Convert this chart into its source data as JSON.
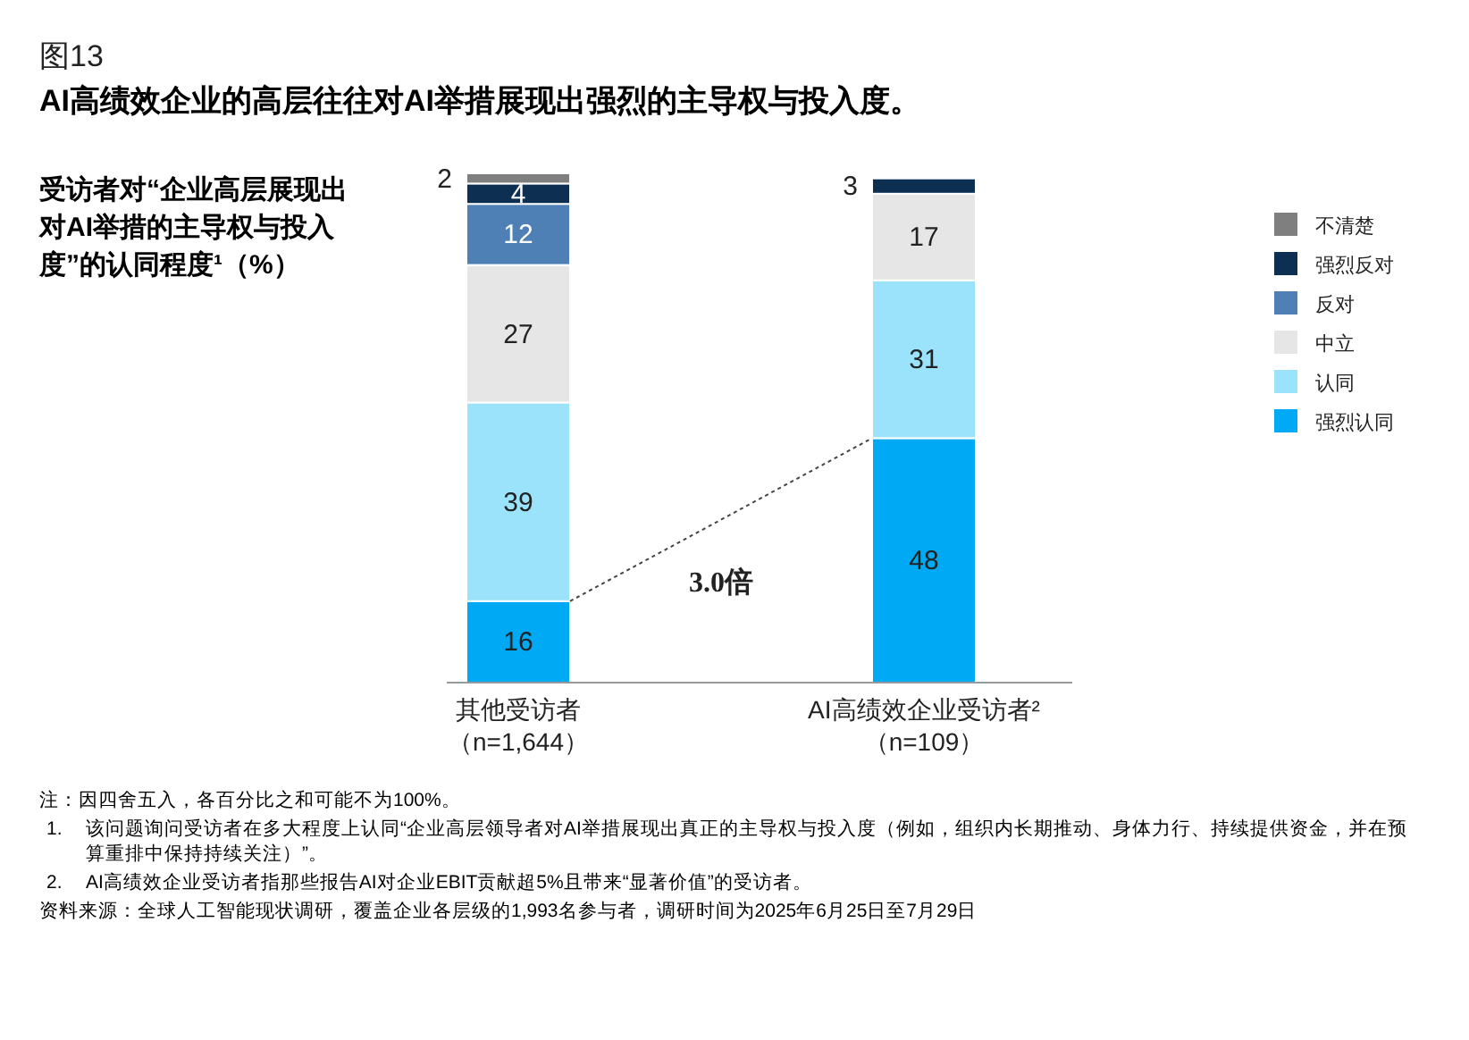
{
  "chart_data": {
    "type": "bar",
    "stacked": true,
    "data_labels": true,
    "legend": "right",
    "title": "AI高绩效企业的高层往往对AI举措展现出强烈的主导权与投入度。",
    "subtitle": "受访者对“企业高层展现出对AI举措的主导权与投入度”的认同程度¹（%）",
    "categories": [
      "其他受访者（n=1,644）",
      "AI高绩效企业受访者²（n=109）"
    ],
    "series": [
      {
        "name": "强烈认同",
        "color": "#00a9f4",
        "values": [
          16,
          48
        ]
      },
      {
        "name": "认同",
        "color": "#9ae3fb",
        "values": [
          39,
          31
        ]
      },
      {
        "name": "中立",
        "color": "#e6e6e6",
        "values": [
          27,
          17
        ]
      },
      {
        "name": "反对",
        "color": "#4e7fb5",
        "values": [
          12,
          null
        ]
      },
      {
        "name": "强烈反对",
        "color": "#0d2f52",
        "values": [
          4,
          3
        ]
      },
      {
        "name": "不清楚",
        "color": "#7f7f7f",
        "values": [
          2,
          null
        ]
      }
    ],
    "annotations": [
      "图13",
      {
        "text": "3.0倍"
      },
      "注：因四舍五入，各百分比之和可能不为100%。",
      "1. 该问题询问受访者在多大程度上认同“企业高层领导者对AI举措展现出真正的主导权与投入度（例如，组织内长期推动、身体力行、持续提供资金，并在预算重排中保持持续关注）”。",
      "2. AI高绩效企业受访者指那些报告AI对企业EBIT贡献超5%且带来“显著价值”的受访者。",
      "资料来源：全球人工智能现状调研，覆盖企业各层级的1,993名参与者，调研时间为2025年6月25日至7月29日"
    ]
  }
}
